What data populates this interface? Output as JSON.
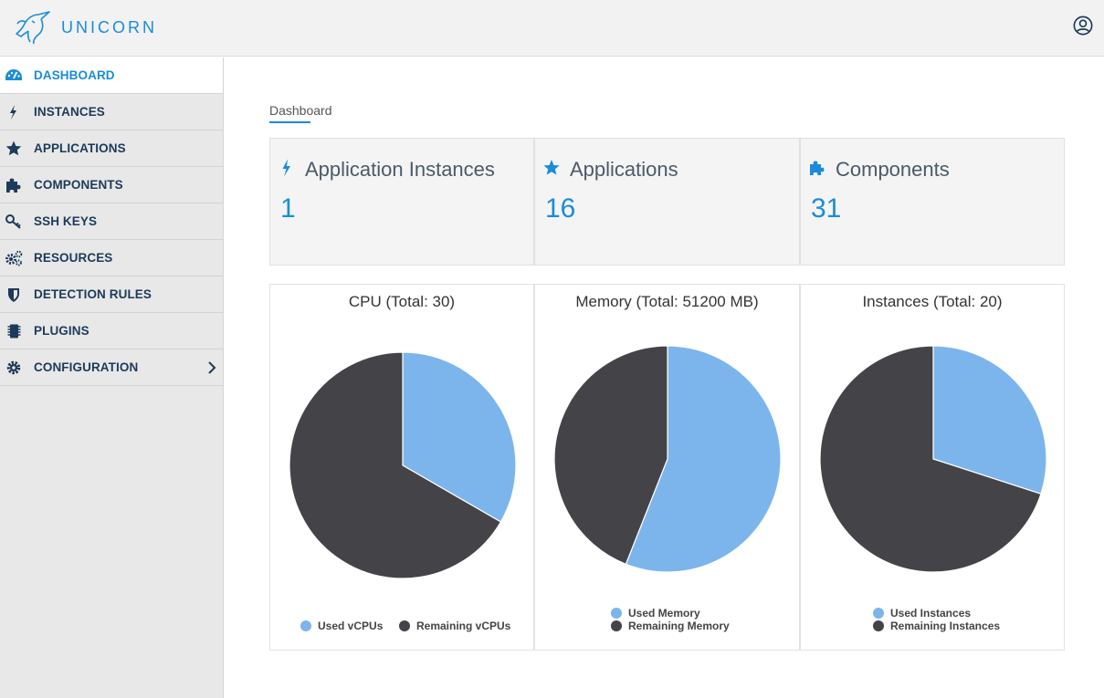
{
  "app": {
    "brand": "UNICORN",
    "accent": "#1a8cd8"
  },
  "header": {
    "user_icon": "user-circle-icon"
  },
  "sidebar": {
    "items": [
      {
        "label": "DASHBOARD",
        "icon": "dashboard-icon",
        "active": true
      },
      {
        "label": "INSTANCES",
        "icon": "bolt-icon"
      },
      {
        "label": "APPLICATIONS",
        "icon": "star-icon"
      },
      {
        "label": "COMPONENTS",
        "icon": "puzzle-icon"
      },
      {
        "label": "SSH KEYS",
        "icon": "key-icon"
      },
      {
        "label": "RESOURCES",
        "icon": "cogs-icon"
      },
      {
        "label": "DETECTION RULES",
        "icon": "shield-icon"
      },
      {
        "label": "PLUGINS",
        "icon": "chip-icon"
      },
      {
        "label": "CONFIGURATION",
        "icon": "gear-icon",
        "has_submenu": true
      }
    ]
  },
  "main": {
    "breadcrumb": "Dashboard",
    "stats": [
      {
        "title": "Application Instances",
        "value": "1",
        "icon": "bolt-icon"
      },
      {
        "title": "Applications",
        "value": "16",
        "icon": "star-icon"
      },
      {
        "title": "Components",
        "value": "31",
        "icon": "puzzle-icon"
      }
    ]
  },
  "colors": {
    "used": "#7cb5ec",
    "remaining": "#434348"
  },
  "chart_data": [
    {
      "type": "pie",
      "title": "CPU (Total: 30)",
      "series": [
        {
          "name": "Used vCPUs",
          "value": 10
        },
        {
          "name": "Remaining vCPUs",
          "value": 20
        }
      ],
      "legend": "bottom-horizontal"
    },
    {
      "type": "pie",
      "title": "Memory (Total: 51200 MB)",
      "series": [
        {
          "name": "Used Memory",
          "value": 28672
        },
        {
          "name": "Remaining Memory",
          "value": 22528
        }
      ],
      "legend": "bottom-vertical"
    },
    {
      "type": "pie",
      "title": "Instances (Total: 20)",
      "series": [
        {
          "name": "Used Instances",
          "value": 6
        },
        {
          "name": "Remaining Instances",
          "value": 14
        }
      ],
      "legend": "bottom-vertical"
    }
  ]
}
